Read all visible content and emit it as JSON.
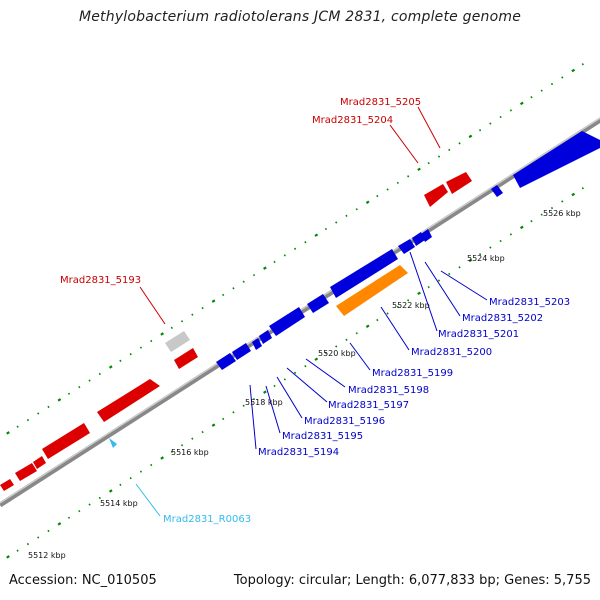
{
  "title": "Methylobacterium radiotolerans JCM 2831, complete genome",
  "footer": {
    "accession": "Accession: NC_010505",
    "summary": "Topology: circular; Length: 6,077,833 bp; Genes: 5,755"
  },
  "colors": {
    "forward_gene": "#dd0000",
    "reverse_gene": "#0000dd",
    "pseudo_gene": "#c8c8c8",
    "highlight_gene": "#ff8800",
    "rna_gene": "#33bbee",
    "backbone": "#888888",
    "tick": "#008800",
    "forward_label": "#cc0000",
    "reverse_label": "#0000cc",
    "rna_label": "#33bbee"
  },
  "kbp_labels": [
    "5512 kbp",
    "5514 kbp",
    "5516 kbp",
    "5518 kbp",
    "5520 kbp",
    "5522 kbp",
    "5524 kbp",
    "5526 kbp"
  ],
  "gene_labels": {
    "forward": [
      "Mrad2831_5193",
      "Mrad2831_5204",
      "Mrad2831_5205"
    ],
    "reverse": [
      "Mrad2831_5194",
      "Mrad2831_5195",
      "Mrad2831_5196",
      "Mrad2831_5197",
      "Mrad2831_5198",
      "Mrad2831_5199",
      "Mrad2831_5200",
      "Mrad2831_5201",
      "Mrad2831_5202",
      "Mrad2831_5203"
    ],
    "rna": [
      "Mrad2831_R0063"
    ]
  }
}
